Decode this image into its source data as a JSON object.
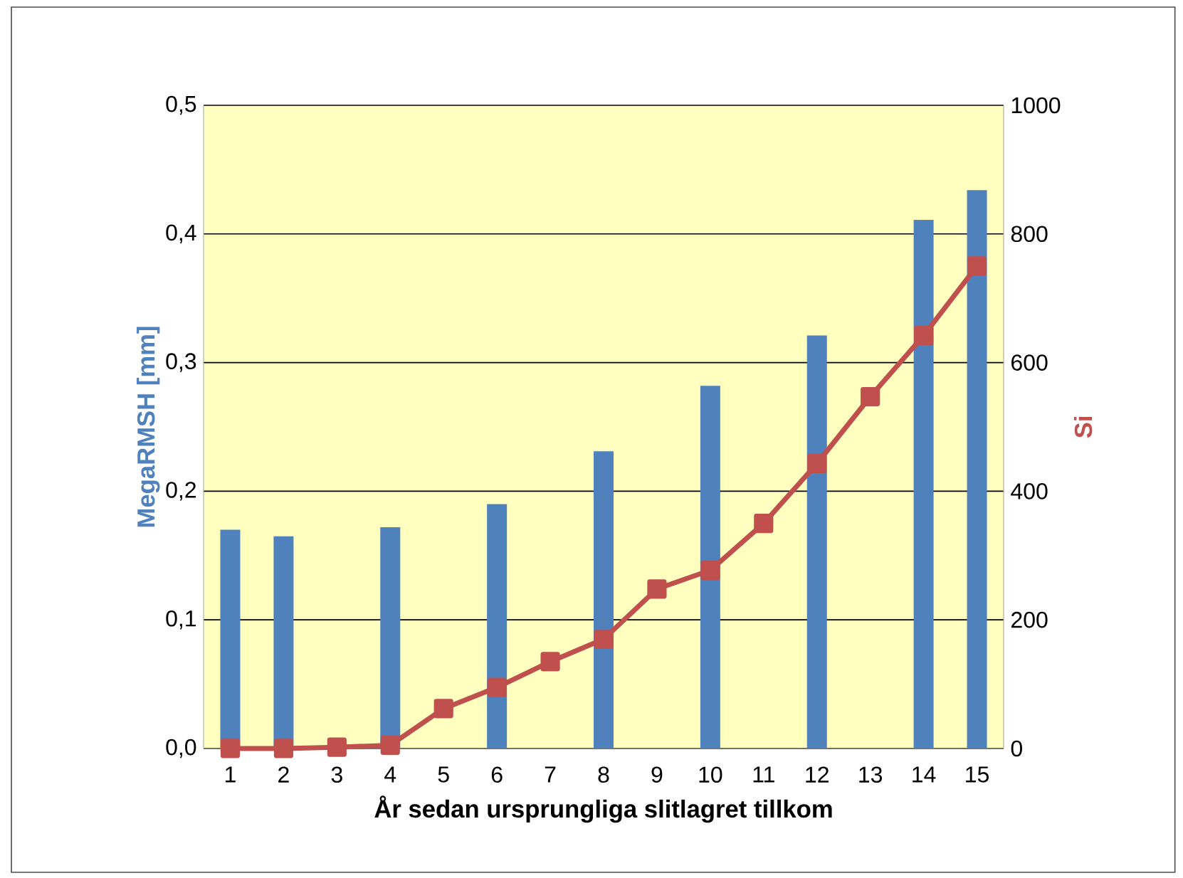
{
  "chart_data": {
    "type": "bar",
    "categories": [
      "1",
      "2",
      "3",
      "4",
      "5",
      "6",
      "7",
      "8",
      "9",
      "10",
      "11",
      "12",
      "13",
      "14",
      "15"
    ],
    "series": [
      {
        "color": "#4f81bd",
        "values": [
          0.17,
          0.165,
          null,
          0.172,
          null,
          0.19,
          null,
          0.231,
          null,
          0.282,
          null,
          0.321,
          null,
          0.411,
          0.434
        ]
      },
      {
        "type": "line",
        "axis": "y2",
        "color": "#c0504d",
        "marker": "square",
        "values": [
          0,
          0,
          2,
          5,
          62,
          95,
          135,
          170,
          248,
          277,
          350,
          443,
          547,
          642,
          750
        ]
      }
    ],
    "xlabel": "År sedan ursprungliga slitlagret tillkom",
    "ylabel": "MegaRMSH [mm]",
    "y2label": "Si",
    "ylim": [
      0,
      0.5
    ],
    "yticks": [
      {
        "value": 0,
        "label": "0,0"
      },
      {
        "value": 0.1,
        "label": "0,1"
      },
      {
        "value": 0.2,
        "label": "0,2"
      },
      {
        "value": 0.3,
        "label": "0,3"
      },
      {
        "value": 0.4,
        "label": "0,4"
      },
      {
        "value": 0.5,
        "label": "0,5"
      }
    ],
    "y2lim": [
      0,
      1000
    ],
    "y2ticks": [
      0,
      200,
      400,
      600,
      800,
      1000
    ],
    "grid": "y"
  }
}
